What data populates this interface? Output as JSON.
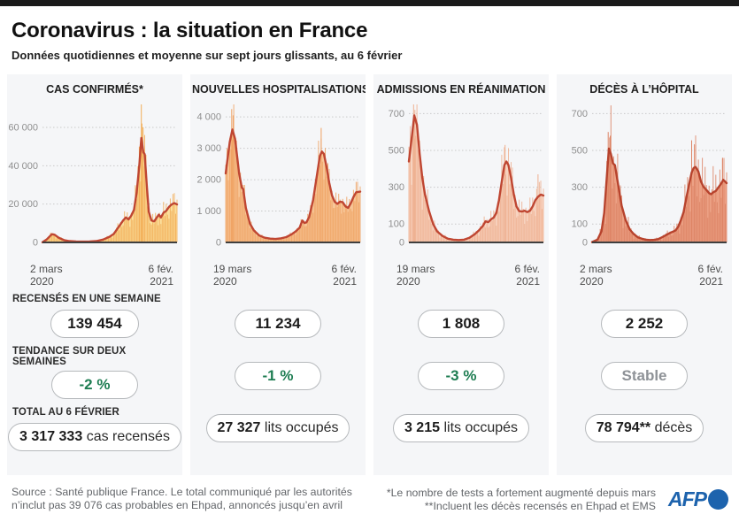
{
  "header": {
    "title": "Coronavirus : la situation en France",
    "subtitle": "Données quotidiennes et moyenne sur sept jours glissants, au 6 février"
  },
  "chart_data": [
    {
      "type": "area",
      "title": "CAS CONFIRMÉS*",
      "x_start_line1": "2 mars",
      "x_start_line2": "2020",
      "x_end_line1": "6 fév.",
      "x_end_line2": "2021",
      "ylim": [
        0,
        72000
      ],
      "yticks": [
        0,
        20000,
        40000,
        60000
      ],
      "ytick_labels": [
        "0",
        "20 000",
        "40 000",
        "60 000"
      ],
      "series": [
        {
          "name": "moyenne 7 jours",
          "points": [
            [
              0,
              100
            ],
            [
              0.03,
              1500
            ],
            [
              0.07,
              4300
            ],
            [
              0.09,
              4000
            ],
            [
              0.12,
              2500
            ],
            [
              0.16,
              1200
            ],
            [
              0.2,
              700
            ],
            [
              0.25,
              450
            ],
            [
              0.3,
              400
            ],
            [
              0.35,
              500
            ],
            [
              0.4,
              700
            ],
            [
              0.45,
              1500
            ],
            [
              0.5,
              3000
            ],
            [
              0.53,
              4500
            ],
            [
              0.56,
              7500
            ],
            [
              0.58,
              9500
            ],
            [
              0.6,
              11500
            ],
            [
              0.62,
              13000
            ],
            [
              0.64,
              12000
            ],
            [
              0.66,
              14000
            ],
            [
              0.68,
              17000
            ],
            [
              0.7,
              26000
            ],
            [
              0.72,
              40000
            ],
            [
              0.735,
              54500
            ],
            [
              0.75,
              47000
            ],
            [
              0.76,
              46000
            ],
            [
              0.775,
              30000
            ],
            [
              0.79,
              16000
            ],
            [
              0.81,
              11500
            ],
            [
              0.83,
              11000
            ],
            [
              0.85,
              13000
            ],
            [
              0.865,
              14500
            ],
            [
              0.88,
              13000
            ],
            [
              0.9,
              15500
            ],
            [
              0.92,
              16500
            ],
            [
              0.94,
              18500
            ],
            [
              0.96,
              19800
            ],
            [
              0.98,
              20500
            ],
            [
              1,
              19800
            ]
          ]
        }
      ],
      "spikes": [
        [
          0.735,
          72000
        ],
        [
          0.748,
          60000
        ],
        [
          0.72,
          50000
        ]
      ],
      "bar_amp": 0.35,
      "colors": {
        "fill": "#fbdf9d",
        "bar": "#f2ae58",
        "line": "#bf4632"
      }
    },
    {
      "type": "area",
      "title": "NOUVELLES HOSPITALISATIONS",
      "x_start_line1": "19 mars",
      "x_start_line2": "2020",
      "x_end_line1": "6 fév.",
      "x_end_line2": "2021",
      "ylim": [
        0,
        4400
      ],
      "yticks": [
        0,
        1000,
        2000,
        3000,
        4000
      ],
      "ytick_labels": [
        "0",
        "1 000",
        "2 000",
        "3 000",
        "4 000"
      ],
      "series": [
        {
          "name": "moyenne 7 jours",
          "points": [
            [
              0,
              2200
            ],
            [
              0.03,
              3200
            ],
            [
              0.05,
              3600
            ],
            [
              0.07,
              3300
            ],
            [
              0.1,
              2200
            ],
            [
              0.12,
              1750
            ],
            [
              0.13,
              1700
            ],
            [
              0.15,
              1100
            ],
            [
              0.18,
              600
            ],
            [
              0.21,
              380
            ],
            [
              0.25,
              220
            ],
            [
              0.29,
              150
            ],
            [
              0.33,
              120
            ],
            [
              0.37,
              110
            ],
            [
              0.41,
              130
            ],
            [
              0.45,
              170
            ],
            [
              0.49,
              260
            ],
            [
              0.52,
              350
            ],
            [
              0.55,
              470
            ],
            [
              0.57,
              700
            ],
            [
              0.585,
              620
            ],
            [
              0.6,
              640
            ],
            [
              0.62,
              800
            ],
            [
              0.65,
              1350
            ],
            [
              0.68,
              2200
            ],
            [
              0.7,
              2750
            ],
            [
              0.715,
              2900
            ],
            [
              0.73,
              2820
            ],
            [
              0.75,
              2400
            ],
            [
              0.77,
              1900
            ],
            [
              0.79,
              1500
            ],
            [
              0.81,
              1300
            ],
            [
              0.83,
              1230
            ],
            [
              0.85,
              1300
            ],
            [
              0.87,
              1280
            ],
            [
              0.89,
              1150
            ],
            [
              0.91,
              1100
            ],
            [
              0.93,
              1250
            ],
            [
              0.95,
              1450
            ],
            [
              0.97,
              1600
            ],
            [
              1,
              1620
            ]
          ]
        }
      ],
      "spikes": [
        [
          0.045,
          4250
        ],
        [
          0.055,
          4050
        ],
        [
          0.71,
          3650
        ]
      ],
      "bar_amp": 0.28,
      "colors": {
        "fill": "#f7c698",
        "bar": "#efa263",
        "line": "#bf4632"
      }
    },
    {
      "type": "area",
      "title": "ADMISSIONS EN RÉANIMATION",
      "x_start_line1": "19 mars",
      "x_start_line2": "2020",
      "x_end_line1": "6 fév.",
      "x_end_line2": "2021",
      "ylim": [
        0,
        750
      ],
      "yticks": [
        0,
        100,
        300,
        500,
        700
      ],
      "ytick_labels": [
        "0",
        "100",
        "300",
        "500",
        "700"
      ],
      "series": [
        {
          "name": "moyenne 7 jours",
          "points": [
            [
              0,
              440
            ],
            [
              0.02,
              560
            ],
            [
              0.04,
              690
            ],
            [
              0.06,
              640
            ],
            [
              0.08,
              480
            ],
            [
              0.1,
              350
            ],
            [
              0.12,
              260
            ],
            [
              0.15,
              170
            ],
            [
              0.18,
              100
            ],
            [
              0.21,
              60
            ],
            [
              0.25,
              35
            ],
            [
              0.29,
              20
            ],
            [
              0.33,
              15
            ],
            [
              0.37,
              13
            ],
            [
              0.41,
              15
            ],
            [
              0.45,
              25
            ],
            [
              0.49,
              45
            ],
            [
              0.52,
              65
            ],
            [
              0.55,
              90
            ],
            [
              0.57,
              115
            ],
            [
              0.59,
              110
            ],
            [
              0.61,
              125
            ],
            [
              0.63,
              135
            ],
            [
              0.65,
              160
            ],
            [
              0.67,
              230
            ],
            [
              0.69,
              330
            ],
            [
              0.71,
              420
            ],
            [
              0.725,
              440
            ],
            [
              0.74,
              420
            ],
            [
              0.76,
              350
            ],
            [
              0.78,
              260
            ],
            [
              0.8,
              195
            ],
            [
              0.82,
              170
            ],
            [
              0.84,
              168
            ],
            [
              0.86,
              172
            ],
            [
              0.88,
              165
            ],
            [
              0.9,
              172
            ],
            [
              0.92,
              195
            ],
            [
              0.94,
              230
            ],
            [
              0.96,
              248
            ],
            [
              0.98,
              260
            ],
            [
              1,
              255
            ]
          ]
        }
      ],
      "spikes": [
        [
          0.035,
          760
        ],
        [
          0.045,
          720
        ],
        [
          0.715,
          530
        ],
        [
          0.96,
          370
        ]
      ],
      "bar_amp": 0.4,
      "colors": {
        "fill": "#f7d3c0",
        "bar": "#eeb090",
        "line": "#bf4632"
      }
    },
    {
      "type": "area",
      "title": "DÉCÈS À L’HÔPITAL",
      "x_start_line1": "2 mars",
      "x_start_line2": "2020",
      "x_end_line1": "6 fév.",
      "x_end_line2": "2021",
      "ylim": [
        0,
        750
      ],
      "yticks": [
        0,
        100,
        300,
        500,
        700
      ],
      "ytick_labels": [
        "0",
        "100",
        "300",
        "500",
        "700"
      ],
      "series": [
        {
          "name": "moyenne 7 jours",
          "points": [
            [
              0,
              2
            ],
            [
              0.04,
              15
            ],
            [
              0.07,
              60
            ],
            [
              0.09,
              160
            ],
            [
              0.11,
              360
            ],
            [
              0.125,
              510
            ],
            [
              0.14,
              480
            ],
            [
              0.155,
              430
            ],
            [
              0.17,
              420
            ],
            [
              0.19,
              330
            ],
            [
              0.22,
              200
            ],
            [
              0.25,
              120
            ],
            [
              0.28,
              70
            ],
            [
              0.31,
              45
            ],
            [
              0.34,
              28
            ],
            [
              0.37,
              20
            ],
            [
              0.4,
              15
            ],
            [
              0.43,
              13
            ],
            [
              0.46,
              14
            ],
            [
              0.49,
              18
            ],
            [
              0.52,
              28
            ],
            [
              0.55,
              40
            ],
            [
              0.58,
              52
            ],
            [
              0.6,
              58
            ],
            [
              0.62,
              65
            ],
            [
              0.64,
              85
            ],
            [
              0.66,
              120
            ],
            [
              0.68,
              165
            ],
            [
              0.7,
              240
            ],
            [
              0.72,
              310
            ],
            [
              0.74,
              380
            ],
            [
              0.755,
              405
            ],
            [
              0.77,
              410
            ],
            [
              0.79,
              385
            ],
            [
              0.81,
              330
            ],
            [
              0.83,
              300
            ],
            [
              0.85,
              285
            ],
            [
              0.87,
              268
            ],
            [
              0.885,
              262
            ],
            [
              0.9,
              272
            ],
            [
              0.92,
              280
            ],
            [
              0.94,
              300
            ],
            [
              0.96,
              320
            ],
            [
              0.975,
              340
            ],
            [
              0.99,
              330
            ],
            [
              1,
              322
            ]
          ]
        }
      ],
      "spikes": [
        [
          0.12,
          600
        ],
        [
          0.135,
          580
        ],
        [
          0.74,
          555
        ],
        [
          0.77,
          530
        ],
        [
          0.97,
          460
        ]
      ],
      "bar_amp": 0.5,
      "colors": {
        "fill": "#eca185",
        "bar": "#dd8465",
        "line": "#b7432d"
      }
    }
  ],
  "stats": {
    "week_label": "RECENSÉS EN UNE SEMAINE",
    "trend_label": "TENDANCE SUR DEUX SEMAINES",
    "total_label": "TOTAL AU 6 FÉVRIER",
    "columns": [
      {
        "week": "139 454",
        "trend": "-2 %",
        "trend_color": "#1e7d52",
        "total_value": "3 317 333",
        "total_unit": "cas recensés"
      },
      {
        "week": "11 234",
        "trend": "-1 %",
        "trend_color": "#1e7d52",
        "total_value": "27 327",
        "total_unit": "lits occupés"
      },
      {
        "week": "1 808",
        "trend": "-3 %",
        "trend_color": "#1e7d52",
        "total_value": "3 215",
        "total_unit": "lits occupés"
      },
      {
        "week": "2 252",
        "trend": "Stable",
        "trend_color": "#8e9297",
        "total_value": "78 794**",
        "total_unit": "décès"
      }
    ]
  },
  "footer": {
    "source_line1": "Source : Santé publique France. Le total communiqué par les autorités",
    "source_line2": "n’inclut pas 39 076 cas probables en Ehpad, annoncés jusqu’en avril",
    "note_line1": "*Le nombre de tests a fortement augmenté depuis mars",
    "note_line2": "**Incluent les décès recensés en Ehpad et EMS",
    "logo_text": "AFP"
  },
  "style_colors": {
    "panel_background": "#f5f6f8",
    "grid": "#c9c9c9",
    "axis_baseline": "#3f3f3f",
    "tick_label": "#8f8f8f",
    "afp_blue": "#1d63ad"
  }
}
